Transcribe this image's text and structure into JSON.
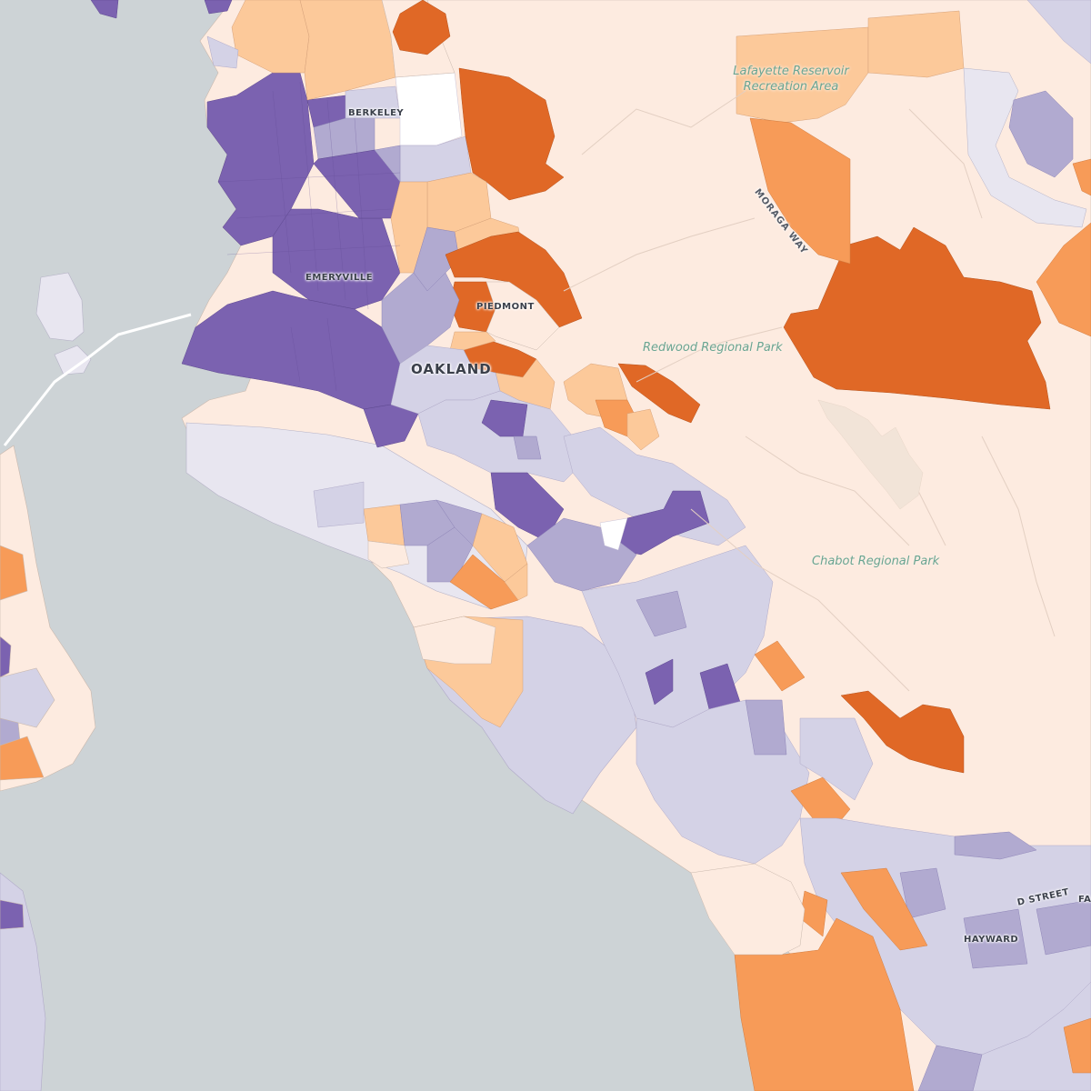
{
  "map": {
    "style": "choropleth",
    "color_scale": {
      "dark_purple": "#7b62b0",
      "light_purple": "#b1aad0",
      "pale_purple": "#d4d2e6",
      "neutral": "#ffffff",
      "pale_orange": "#fdebe0",
      "light_orange": "#fcc99a",
      "orange": "#f79b58",
      "dark_orange": "#e06826"
    },
    "water_color": "#cdd3d6",
    "labels": {
      "berkeley": "BERKELEY",
      "emeryville": "EMERYVILLE",
      "piedmont": "PIEDMONT",
      "oakland": "OAKLAND",
      "hayward": "HAYWARD",
      "lafayette": "Lafayette Reservoir Recreation Area",
      "redwood": "Redwood Regional Park",
      "chabot": "Chabot Regional Park",
      "moraga": "MORAGA WAY",
      "dstreet": "D STREET",
      "fa": "FA"
    }
  }
}
